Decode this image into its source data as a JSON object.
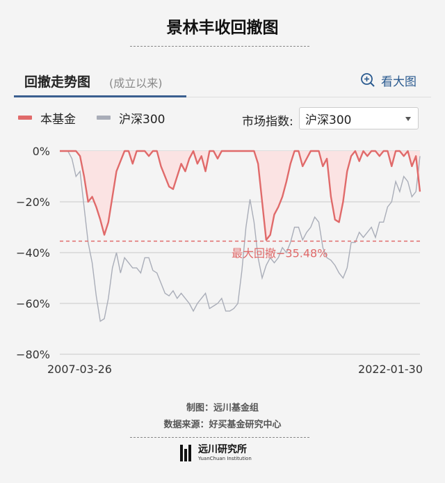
{
  "header": {
    "title": "景林丰收回撤图"
  },
  "tab": {
    "label": "回撤走势图",
    "sub_label": "(成立以来)",
    "zoom_label": "看大图",
    "zoom_icon": "zoom-in-icon"
  },
  "legend": {
    "items": [
      {
        "label": "本基金",
        "color": "#e06a6a"
      },
      {
        "label": "沪深300",
        "color": "#a9adb8"
      }
    ]
  },
  "index_selector": {
    "label": "市场指数:",
    "selected": "沪深300"
  },
  "chart_data": {
    "type": "line",
    "y_unit": "%",
    "ylim": [
      -80,
      0
    ],
    "yticks": [
      "0%",
      "−20%",
      "−40%",
      "−60%",
      "−80%"
    ],
    "ytick_values": [
      0,
      -20,
      -40,
      -60,
      -80
    ],
    "x_start_label": "2007-03-26",
    "x_end_label": "2022-01-30",
    "x": [
      "2007-03",
      "2007-05",
      "2007-07",
      "2007-09",
      "2007-11",
      "2008-01",
      "2008-03",
      "2008-05",
      "2008-07",
      "2008-09",
      "2008-11",
      "2009-01",
      "2009-03",
      "2009-05",
      "2009-07",
      "2009-09",
      "2009-11",
      "2010-01",
      "2010-03",
      "2010-05",
      "2010-07",
      "2010-09",
      "2010-11",
      "2011-01",
      "2011-03",
      "2011-05",
      "2011-07",
      "2011-09",
      "2011-11",
      "2012-01",
      "2012-03",
      "2012-05",
      "2012-07",
      "2012-09",
      "2012-11",
      "2013-01",
      "2013-03",
      "2013-05",
      "2013-07",
      "2013-09",
      "2013-11",
      "2014-01",
      "2014-03",
      "2014-05",
      "2014-07",
      "2014-09",
      "2014-11",
      "2015-01",
      "2015-03",
      "2015-05",
      "2015-07",
      "2015-09",
      "2015-11",
      "2016-01",
      "2016-03",
      "2016-05",
      "2016-07",
      "2016-09",
      "2016-11",
      "2017-01",
      "2017-03",
      "2017-05",
      "2017-07",
      "2017-09",
      "2017-11",
      "2018-01",
      "2018-03",
      "2018-05",
      "2018-07",
      "2018-09",
      "2018-11",
      "2019-01",
      "2019-03",
      "2019-05",
      "2019-07",
      "2019-09",
      "2019-11",
      "2020-01",
      "2020-03",
      "2020-05",
      "2020-07",
      "2020-09",
      "2020-11",
      "2021-01",
      "2021-03",
      "2021-05",
      "2021-07",
      "2021-09",
      "2021-11",
      "2022-01"
    ],
    "series": [
      {
        "name": "本基金",
        "color": "#e06a6a",
        "fill": "#fbe3e3",
        "values": [
          0,
          0,
          0,
          0,
          0,
          -2,
          -10,
          -20,
          -18,
          -22,
          -27,
          -33,
          -28,
          -18,
          -8,
          -4,
          0,
          0,
          -5,
          0,
          0,
          0,
          -2,
          0,
          0,
          -6,
          -10,
          -14,
          -15,
          -10,
          -5,
          -8,
          -3,
          0,
          -5,
          -2,
          -8,
          0,
          0,
          -3,
          0,
          0,
          0,
          0,
          0,
          0,
          0,
          0,
          0,
          -5,
          -20,
          -35,
          -33,
          -25,
          -22,
          -18,
          -12,
          -5,
          0,
          0,
          -6,
          -3,
          0,
          0,
          0,
          -6,
          -3,
          -18,
          -27,
          -28,
          -20,
          -8,
          -2,
          0,
          -4,
          0,
          -2,
          0,
          0,
          -2,
          0,
          0,
          -6,
          0,
          0,
          -2,
          0,
          -6,
          -2,
          -16
        ]
      },
      {
        "name": "沪深300",
        "color": "#a9adb8",
        "values": [
          0,
          0,
          0,
          -3,
          -10,
          -8,
          -22,
          -36,
          -44,
          -57,
          -67,
          -66,
          -58,
          -46,
          -40,
          -48,
          -42,
          -44,
          -46,
          -46,
          -48,
          -42,
          -42,
          -47,
          -48,
          -52,
          -56,
          -57,
          -55,
          -58,
          -56,
          -58,
          -60,
          -63,
          -60,
          -58,
          -56,
          -62,
          -61,
          -60,
          -58,
          -63,
          -63,
          -62,
          -60,
          -47,
          -30,
          -19,
          -28,
          -42,
          -50,
          -45,
          -42,
          -44,
          -42,
          -38,
          -40,
          -36,
          -30,
          -30,
          -35,
          -32,
          -30,
          -26,
          -28,
          -38,
          -42,
          -43,
          -45,
          -48,
          -50,
          -46,
          -36,
          -36,
          -32,
          -34,
          -32,
          -30,
          -34,
          -28,
          -28,
          -22,
          -20,
          -12,
          -16,
          -10,
          -12,
          -18,
          -16,
          -2
        ]
      }
    ],
    "annotation": {
      "label": "最大回撤−35.48%",
      "value": -35.48,
      "color": "#e06a6a"
    }
  },
  "footer": {
    "maker": "制图：远川基金组",
    "source": "数据来源：好买基金研究中心",
    "logo_cn": "远川研究所",
    "logo_en": "YuanChuan Institution"
  }
}
